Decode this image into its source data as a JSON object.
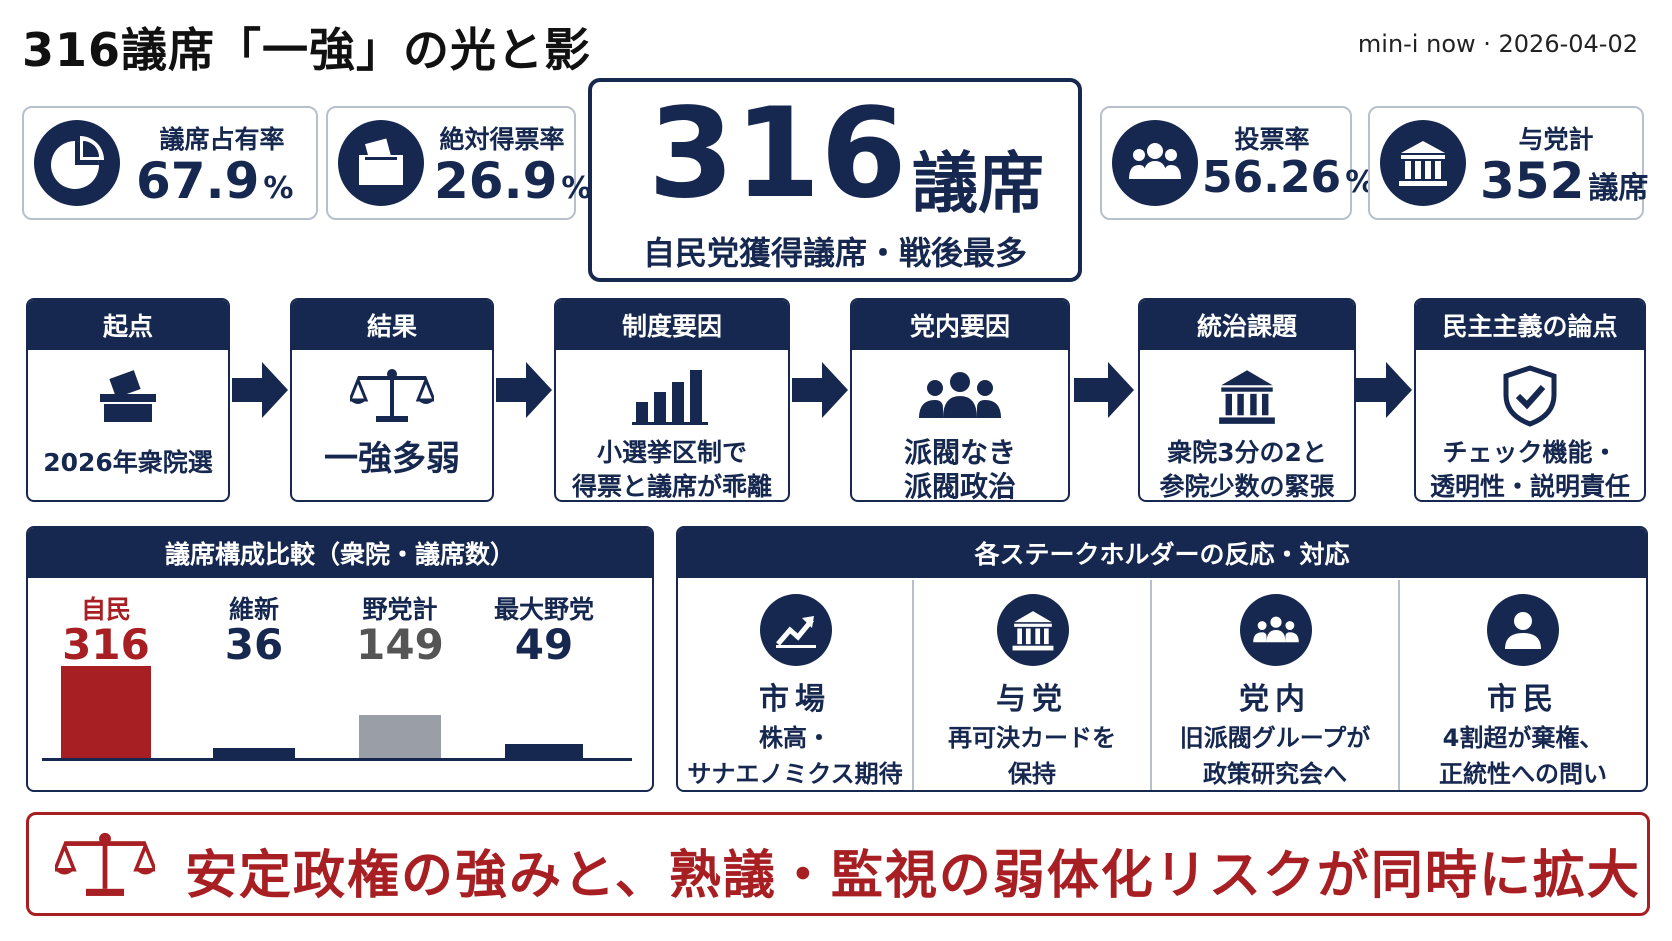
{
  "header": {
    "title": "316議席「一強」の光と影",
    "byline": "min-i now · 2026-04-02"
  },
  "stats": [
    {
      "icon": "pie-chart-icon",
      "label": "議席占有率",
      "value": "67.9",
      "unit": "%"
    },
    {
      "icon": "ballot-box-icon",
      "label": "絶対得票率",
      "value": "26.9",
      "unit": "%"
    },
    {
      "icon": "people-icon",
      "label": "投票率",
      "value": "56.26",
      "unit": "%"
    },
    {
      "icon": "government-building-icon",
      "label": "与党計",
      "value": "352",
      "unit": "議席"
    }
  ],
  "hero": {
    "number": "316",
    "unit": "議席",
    "subtitle": "自民党獲得議席・戦後最多"
  },
  "flow": [
    {
      "heading": "起点",
      "icon": "ballot-box-icon",
      "lines": [
        "2026年衆院選"
      ]
    },
    {
      "heading": "結果",
      "icon": "scales-icon",
      "lines": [
        "一強多弱"
      ]
    },
    {
      "heading": "制度要因",
      "icon": "bar-chart-icon",
      "lines": [
        "小選挙区制で",
        "得票と議席が乖離"
      ]
    },
    {
      "heading": "党内要因",
      "icon": "group-icon",
      "lines": [
        "派閥なき",
        "派閥政治"
      ]
    },
    {
      "heading": "統治課題",
      "icon": "government-building-icon",
      "lines": [
        "衆院3分の2と",
        "参院少数の緊張"
      ]
    },
    {
      "heading": "民主主義の論点",
      "icon": "shield-check-icon",
      "lines": [
        "チェック機能・",
        "透明性・説明責任"
      ]
    }
  ],
  "seats_panel": {
    "heading": "議席構成比較（衆院・議席数）"
  },
  "chart_data": {
    "type": "bar",
    "title": "議席構成比較（衆院・議席数）",
    "categories": [
      "自民",
      "維新",
      "野党計",
      "最大野党"
    ],
    "values": [
      316,
      36,
      149,
      49
    ],
    "colors": [
      "#a81f23",
      "#16284f",
      "#9a9ea6",
      "#16284f"
    ]
  },
  "stakeholders": {
    "heading": "各ステークホルダーの反応・対応",
    "items": [
      {
        "icon": "trend-up-icon",
        "title": "市場",
        "lines": [
          "株高・",
          "サナエノミクス期待"
        ]
      },
      {
        "icon": "government-building-icon",
        "title": "与党",
        "lines": [
          "再可決カードを",
          "保持"
        ]
      },
      {
        "icon": "group-icon",
        "title": "党内",
        "lines": [
          "旧派閥グループが",
          "政策研究会へ"
        ]
      },
      {
        "icon": "person-icon",
        "title": "市民",
        "lines": [
          "4割超が棄権、",
          "正統性への問い"
        ]
      }
    ]
  },
  "banner": {
    "icon": "scales-icon",
    "text": "安定政権の強みと、熟議・監視の弱体化リスクが同時に拡大"
  },
  "colors": {
    "navy": "#16284f",
    "red": "#a81f23",
    "gray": "#9a9ea6"
  }
}
